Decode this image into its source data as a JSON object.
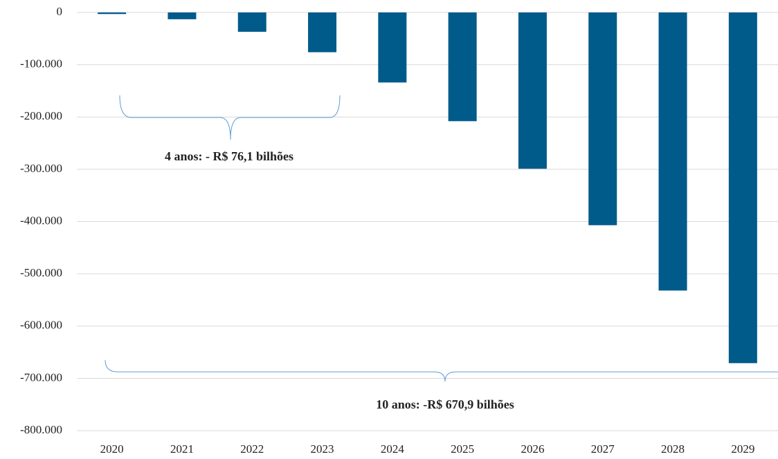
{
  "chart_data": {
    "type": "bar",
    "categories": [
      "2020",
      "2021",
      "2022",
      "2023",
      "2024",
      "2025",
      "2026",
      "2027",
      "2028",
      "2029"
    ],
    "values": [
      -3000,
      -13000,
      -37000,
      -76100,
      -134000,
      -208000,
      -299000,
      -407000,
      -532000,
      -670900
    ],
    "color": "#005b8a",
    "ylim": [
      -800000,
      0
    ],
    "yticks": [
      0,
      {
        "value": -100000,
        "label": "-100.000"
      },
      {
        "value": -200000,
        "label": "-200.000"
      },
      {
        "value": -300000,
        "label": "-300.000"
      },
      {
        "value": -400000,
        "label": "-400.000"
      },
      {
        "value": -500000,
        "label": "-500.000"
      },
      {
        "value": -600000,
        "label": "-600.000"
      },
      {
        "value": -700000,
        "label": "-700.000"
      },
      {
        "value": -800000,
        "label": "-800.000"
      }
    ],
    "grid": true,
    "annotations": [
      "4 anos: - R$ 76,1 bilhões",
      "10 anos: -R$ 670,9 bilhões"
    ]
  }
}
